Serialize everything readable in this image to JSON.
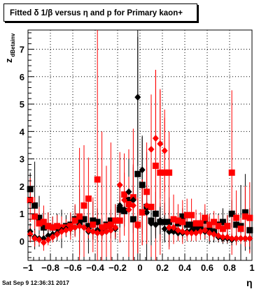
{
  "title": "Fitted δ 1/β versus η and p for Primary kaon+",
  "timestamp": "Sat Sep  9 12:36:31 2017",
  "chart_data": {
    "type": "scatter",
    "title": "Fitted δ 1/β versus η and p for Primary kaon+",
    "xlabel": "η",
    "ylabel": "z",
    "ylabel_subscript": "dBetainv",
    "xlim": [
      -1,
      1
    ],
    "ylim": [
      -0.7,
      7.7
    ],
    "x_ticks": [
      -1,
      -0.8,
      -0.6,
      -0.4,
      -0.2,
      0,
      0.2,
      0.4,
      0.6,
      0.8,
      1
    ],
    "x_tick_labels": [
      "−1",
      "−0.8",
      "−0.6",
      "−0.4",
      "−0.2",
      "0",
      "0.2",
      "0.4",
      "0.6",
      "0.8",
      "1"
    ],
    "y_ticks": [
      0,
      1,
      2,
      3,
      4,
      5,
      6,
      7
    ],
    "y_tick_labels": [
      "0",
      "1",
      "2",
      "3",
      "4",
      "5",
      "6",
      "7"
    ],
    "grid": true,
    "series": [
      {
        "marker": "square",
        "color": "#000000",
        "points": [
          [
            -0.98,
            1.9,
            0.6
          ],
          [
            -0.94,
            1.3,
            1.6
          ],
          [
            -0.9,
            0.85,
            0.8
          ],
          [
            -0.86,
            0.5,
            0.6
          ],
          [
            -0.82,
            0.55,
            0.5
          ],
          [
            -0.78,
            0.5,
            0.4
          ],
          [
            -0.74,
            0.5,
            0.5
          ],
          [
            -0.7,
            0.45,
            0.7
          ],
          [
            -0.66,
            0.55,
            0.4
          ],
          [
            -0.62,
            0.6,
            0.4
          ],
          [
            -0.58,
            0.8,
            0.5
          ],
          [
            -0.54,
            0.7,
            1.2
          ],
          [
            -0.5,
            0.8,
            0.8
          ],
          [
            -0.46,
            0.55,
            1.0
          ],
          [
            -0.42,
            0.75,
            0.7
          ],
          [
            -0.38,
            0.7,
            0.5
          ],
          [
            -0.34,
            0.45,
            0.4
          ],
          [
            -0.3,
            0.6,
            0.3
          ],
          [
            -0.26,
            0.75,
            0.4
          ],
          [
            -0.22,
            0.75,
            0.6
          ],
          [
            -0.18,
            1.15,
            0.5
          ],
          [
            -0.14,
            1.1,
            0.4
          ],
          [
            -0.1,
            1.5,
            1.2
          ],
          [
            -0.06,
            0.8,
            2.0
          ],
          [
            -0.02,
            2.45,
            5.0
          ],
          [
            0.02,
            2.05,
            1.8
          ],
          [
            0.06,
            1.25,
            2.0
          ],
          [
            0.1,
            0.75,
            1.2
          ],
          [
            0.14,
            1.0,
            0.8
          ],
          [
            0.18,
            0.7,
            0.7
          ],
          [
            0.22,
            0.7,
            0.7
          ],
          [
            0.26,
            0.7,
            0.9
          ],
          [
            0.3,
            0.4,
            0.5
          ],
          [
            0.34,
            0.65,
            0.4
          ],
          [
            0.38,
            0.9,
            0.3
          ],
          [
            0.42,
            0.6,
            0.4
          ],
          [
            0.46,
            0.6,
            0.4
          ],
          [
            0.5,
            0.5,
            0.3
          ],
          [
            0.54,
            0.5,
            0.3
          ],
          [
            0.58,
            0.75,
            0.4
          ],
          [
            0.62,
            0.4,
            0.5
          ],
          [
            0.66,
            0.35,
            0.4
          ],
          [
            0.7,
            0.6,
            0.4
          ],
          [
            0.74,
            0.7,
            0.5
          ],
          [
            0.78,
            0.55,
            0.4
          ],
          [
            0.82,
            1.0,
            0.5
          ],
          [
            0.86,
            0.6,
            0.4
          ],
          [
            0.9,
            0.55,
            1.5
          ],
          [
            0.94,
            1.05,
            1.4
          ],
          [
            0.98,
            0.4,
            0.8
          ]
        ]
      },
      {
        "marker": "square",
        "color": "#ff0000",
        "points": [
          [
            -0.98,
            1.5,
            0.8
          ],
          [
            -0.94,
            0.9,
            0.7
          ],
          [
            -0.9,
            0.65,
            0.6
          ],
          [
            -0.86,
            0.7,
            0.6
          ],
          [
            -0.82,
            0.55,
            0.5
          ],
          [
            -0.78,
            0.5,
            0.4
          ],
          [
            -0.74,
            0.55,
            0.4
          ],
          [
            -0.7,
            0.5,
            0.4
          ],
          [
            -0.66,
            0.5,
            0.3
          ],
          [
            -0.62,
            0.55,
            0.5
          ],
          [
            -0.58,
            0.75,
            0.6
          ],
          [
            -0.54,
            0.9,
            2.5
          ],
          [
            -0.5,
            1.3,
            2.2
          ],
          [
            -0.46,
            1.55,
            1.5
          ],
          [
            -0.42,
            0.6,
            1.0
          ],
          [
            -0.38,
            2.25,
            5.5
          ],
          [
            -0.34,
            0.5,
            3.5
          ],
          [
            -0.3,
            0.55,
            2.2
          ],
          [
            -0.26,
            0.6,
            3.0
          ],
          [
            -0.22,
            0.75,
            0.6
          ],
          [
            -0.18,
            0.75,
            0.8
          ],
          [
            -0.14,
            1.7,
            1.5
          ],
          [
            -0.1,
            1.35,
            2.0
          ],
          [
            -0.06,
            1.6,
            2.5
          ],
          [
            -0.02,
            0.6,
            1.0
          ],
          [
            0.02,
            1.05,
            1.2
          ],
          [
            0.06,
            1.8,
            1.8
          ],
          [
            0.1,
            1.25,
            2.5
          ],
          [
            0.14,
            2.75,
            3.5
          ],
          [
            0.18,
            2.5,
            3.0
          ],
          [
            0.22,
            2.5,
            2.0
          ],
          [
            0.26,
            2.5,
            1.5
          ],
          [
            0.3,
            0.8,
            0.9
          ],
          [
            0.34,
            0.75,
            0.6
          ],
          [
            0.38,
            0.7,
            0.8
          ],
          [
            0.42,
            0.95,
            0.6
          ],
          [
            0.46,
            0.95,
            0.6
          ],
          [
            0.5,
            0.65,
            0.5
          ],
          [
            0.54,
            0.65,
            0.4
          ],
          [
            0.58,
            0.85,
            0.5
          ],
          [
            0.62,
            0.6,
            0.4
          ],
          [
            0.66,
            0.7,
            0.4
          ],
          [
            0.7,
            0.55,
            0.4
          ],
          [
            0.74,
            0.45,
            0.3
          ],
          [
            0.78,
            0.55,
            0.4
          ],
          [
            0.82,
            2.5,
            3.0
          ],
          [
            0.86,
            0.85,
            1.0
          ],
          [
            0.9,
            0.45,
            0.4
          ],
          [
            0.94,
            0.9,
            1.1
          ],
          [
            0.98,
            0.85,
            1.3
          ]
        ]
      },
      {
        "marker": "diamond",
        "color": "#000000",
        "points": [
          [
            -0.98,
            0.35,
            0.3
          ],
          [
            -0.94,
            0.15,
            0.3
          ],
          [
            -0.9,
            0.1,
            0.3
          ],
          [
            -0.86,
            0.1,
            0.3
          ],
          [
            -0.82,
            0.2,
            0.2
          ],
          [
            -0.78,
            0.25,
            0.2
          ],
          [
            -0.74,
            0.3,
            0.2
          ],
          [
            -0.7,
            0.4,
            0.2
          ],
          [
            -0.66,
            0.45,
            0.2
          ],
          [
            -0.62,
            0.45,
            0.2
          ],
          [
            -0.58,
            0.5,
            0.3
          ],
          [
            -0.54,
            0.6,
            0.3
          ],
          [
            -0.5,
            0.5,
            0.3
          ],
          [
            -0.46,
            0.35,
            0.3
          ],
          [
            -0.42,
            0.35,
            0.3
          ],
          [
            -0.38,
            0.4,
            0.3
          ],
          [
            -0.34,
            0.3,
            0.2
          ],
          [
            -0.3,
            0.35,
            0.2
          ],
          [
            -0.26,
            0.4,
            0.3
          ],
          [
            -0.22,
            0.45,
            0.4
          ],
          [
            -0.18,
            1.3,
            0.8
          ],
          [
            -0.14,
            1.15,
            0.6
          ],
          [
            -0.1,
            1.8,
            1.2
          ],
          [
            -0.06,
            1.5,
            1.2
          ],
          [
            -0.02,
            5.25,
            2.5
          ],
          [
            0.02,
            2.6,
            1.2
          ],
          [
            0.06,
            1.05,
            1.0
          ],
          [
            0.1,
            0.65,
            0.8
          ],
          [
            0.14,
            0.6,
            0.5
          ],
          [
            0.18,
            0.75,
            0.5
          ],
          [
            0.22,
            0.45,
            0.5
          ],
          [
            0.26,
            0.35,
            0.4
          ],
          [
            0.3,
            0.35,
            0.3
          ],
          [
            0.34,
            0.3,
            0.3
          ],
          [
            0.38,
            0.3,
            0.2
          ],
          [
            0.42,
            0.35,
            0.2
          ],
          [
            0.46,
            0.4,
            0.2
          ],
          [
            0.5,
            0.35,
            0.2
          ],
          [
            0.54,
            0.4,
            0.2
          ],
          [
            0.58,
            0.35,
            0.3
          ],
          [
            0.62,
            0.3,
            0.3
          ],
          [
            0.66,
            0.25,
            0.2
          ],
          [
            0.7,
            0.15,
            0.2
          ],
          [
            0.74,
            0.1,
            0.2
          ],
          [
            0.78,
            0.1,
            0.2
          ],
          [
            0.82,
            0.05,
            0.2
          ],
          [
            0.86,
            0.1,
            0.2
          ],
          [
            0.9,
            0.1,
            0.3
          ],
          [
            0.94,
            0.1,
            0.3
          ],
          [
            0.98,
            0.1,
            0.4
          ]
        ]
      },
      {
        "marker": "diamond",
        "color": "#ff0000",
        "points": [
          [
            -0.98,
            0.25,
            0.3
          ],
          [
            -0.94,
            0.1,
            0.3
          ],
          [
            -0.9,
            0.05,
            0.2
          ],
          [
            -0.86,
            -0.05,
            0.3
          ],
          [
            -0.82,
            0.05,
            0.2
          ],
          [
            -0.78,
            0.15,
            0.2
          ],
          [
            -0.74,
            0.25,
            0.2
          ],
          [
            -0.7,
            0.35,
            0.2
          ],
          [
            -0.66,
            0.4,
            0.2
          ],
          [
            -0.62,
            0.45,
            0.2
          ],
          [
            -0.58,
            0.5,
            0.3
          ],
          [
            -0.54,
            0.55,
            0.3
          ],
          [
            -0.5,
            0.5,
            0.3
          ],
          [
            -0.46,
            0.4,
            0.3
          ],
          [
            -0.42,
            0.35,
            0.3
          ],
          [
            -0.38,
            0.3,
            0.3
          ],
          [
            -0.34,
            0.3,
            0.2
          ],
          [
            -0.3,
            0.35,
            0.2
          ],
          [
            -0.26,
            0.4,
            0.3
          ],
          [
            -0.22,
            0.5,
            0.4
          ],
          [
            -0.18,
            2.05,
            1.2
          ],
          [
            -0.14,
            1.5,
            1.0
          ],
          [
            -0.1,
            1.15,
            1.2
          ],
          [
            -0.06,
            1.3,
            1.5
          ],
          [
            -0.02,
            0.55,
            1.0
          ],
          [
            0.02,
            1.05,
            1.2
          ],
          [
            0.06,
            1.3,
            1.4
          ],
          [
            0.1,
            3.35,
            2.0
          ],
          [
            0.14,
            3.75,
            2.5
          ],
          [
            0.18,
            3.55,
            2.0
          ],
          [
            0.22,
            3.3,
            1.5
          ],
          [
            0.26,
            0.5,
            0.8
          ],
          [
            0.3,
            0.5,
            0.5
          ],
          [
            0.34,
            0.4,
            0.4
          ],
          [
            0.38,
            0.35,
            0.3
          ],
          [
            0.42,
            0.3,
            0.3
          ],
          [
            0.46,
            0.3,
            0.3
          ],
          [
            0.5,
            0.3,
            0.3
          ],
          [
            0.54,
            0.35,
            0.3
          ],
          [
            0.58,
            0.4,
            0.3
          ],
          [
            0.62,
            0.3,
            0.3
          ],
          [
            0.66,
            0.25,
            0.2
          ],
          [
            0.7,
            0.2,
            0.2
          ],
          [
            0.74,
            0.15,
            0.2
          ],
          [
            0.78,
            0.15,
            0.2
          ],
          [
            0.82,
            0.1,
            0.2
          ],
          [
            0.86,
            0.1,
            0.2
          ],
          [
            0.9,
            0.1,
            0.2
          ],
          [
            0.94,
            0.1,
            0.3
          ],
          [
            0.98,
            0.1,
            0.3
          ]
        ]
      }
    ]
  }
}
